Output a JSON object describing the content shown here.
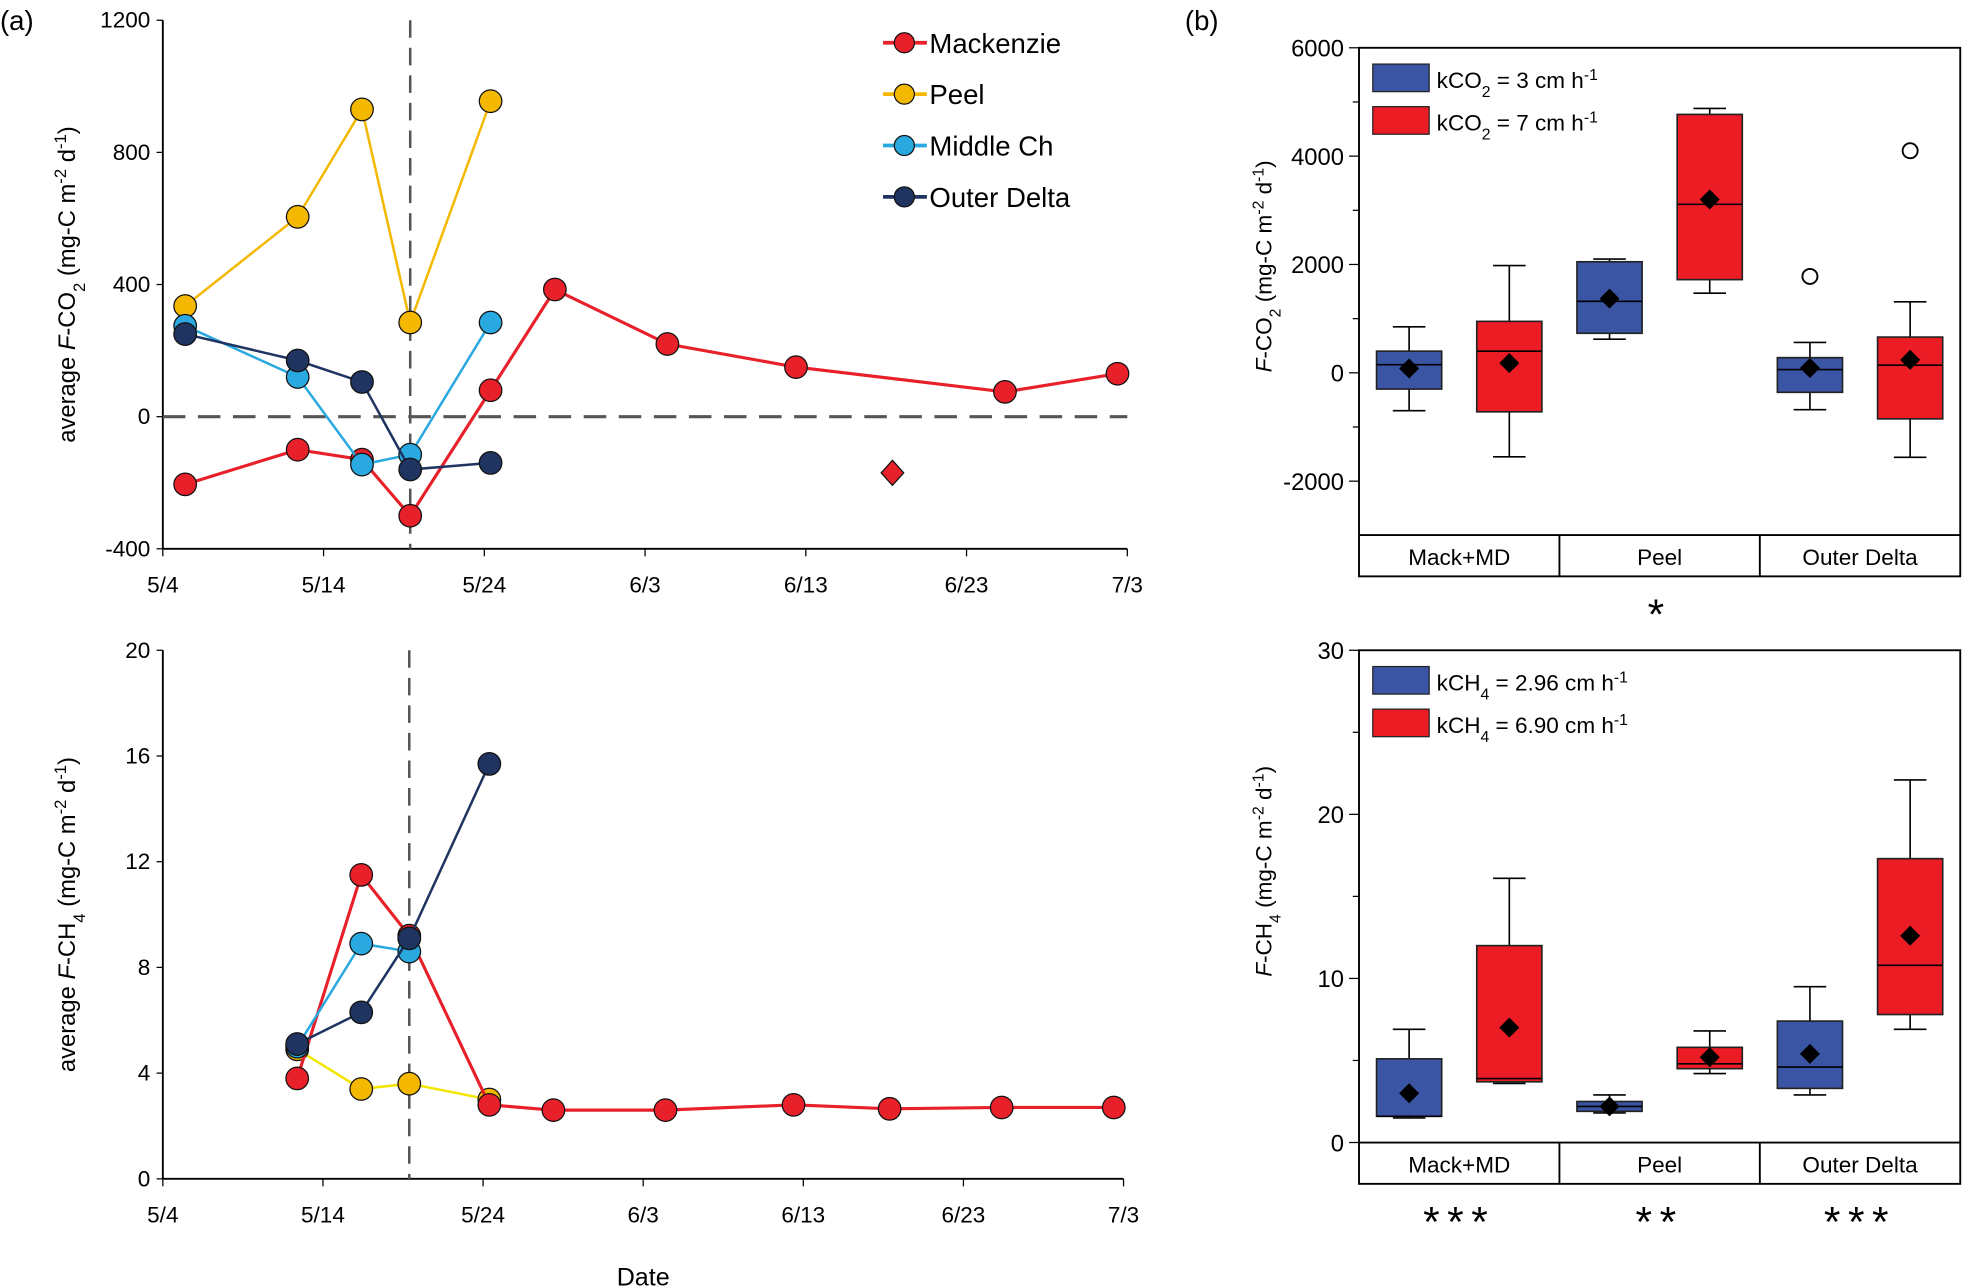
{
  "panel_labels": {
    "a": "(a)",
    "b": "(b)"
  },
  "colors": {
    "Mackenzie": "#e8202a",
    "Peel": "#f5b800",
    "Peel_ch4_line": "#f2e600",
    "Middle Ch": "#2aa9e0",
    "Outer Delta": "#1f3461",
    "box_blue": "#3a55a4",
    "box_red": "#ec1c24",
    "refline": "#555555"
  },
  "chart_data": [
    {
      "type": "line",
      "panel": "a-top",
      "ylabel": [
        {
          "t": "average "
        },
        {
          "t": "F",
          "i": true
        },
        {
          "t": "-CO"
        },
        {
          "t": "2",
          "sub": true
        },
        {
          "t": " (mg-C m"
        },
        {
          "t": "-2",
          "sup": true
        },
        {
          "t": " d"
        },
        {
          "t": "-1",
          "sup": true
        },
        {
          "t": ")"
        }
      ],
      "xlabel": "",
      "x_ticks": [
        "5/4",
        "5/14",
        "5/24",
        "6/3",
        "6/13",
        "6/23",
        "7/3"
      ],
      "ylim": [
        -400,
        1200
      ],
      "y_ticks": [
        1200,
        800,
        400,
        0,
        -400
      ],
      "reference_lines": {
        "horizontal_y": 0,
        "vertical_date": "5/19"
      },
      "legend": {
        "position": "top-right",
        "entries": [
          "Mackenzie",
          "Peel",
          "Middle Ch",
          "Outer Delta"
        ]
      },
      "series": [
        {
          "name": "Mackenzie",
          "x": [
            "5/5",
            "5/12",
            "5/16",
            "5/19",
            "5/24",
            "5/28",
            "6/4",
            "6/12",
            "6/25",
            "7/2"
          ],
          "y": [
            -205,
            -100,
            -130,
            -300,
            80,
            385,
            220,
            150,
            75,
            130
          ]
        },
        {
          "name": "Peel",
          "x": [
            "5/5",
            "5/12",
            "5/16",
            "5/19",
            "5/24"
          ],
          "y": [
            335,
            605,
            930,
            285,
            955
          ]
        },
        {
          "name": "Middle Ch",
          "x": [
            "5/5",
            "5/12",
            "5/16",
            "5/19",
            "5/24"
          ],
          "y": [
            275,
            120,
            -145,
            -115,
            285
          ]
        },
        {
          "name": "Outer Delta",
          "x": [
            "5/5",
            "5/12",
            "5/16",
            "5/19",
            "5/24"
          ],
          "y": [
            250,
            170,
            105,
            -160,
            -140
          ]
        }
      ],
      "extra_points": [
        {
          "marker": "diamond",
          "color": "#e8202a",
          "x": "6/18",
          "y": -170
        }
      ]
    },
    {
      "type": "line",
      "panel": "a-bottom",
      "ylabel": [
        {
          "t": "average "
        },
        {
          "t": "F",
          "i": true
        },
        {
          "t": "-CH"
        },
        {
          "t": "4",
          "sub": true
        },
        {
          "t": " (mg-C m"
        },
        {
          "t": "-2",
          "sup": true
        },
        {
          "t": " d"
        },
        {
          "t": "-1",
          "sup": true
        },
        {
          "t": ")"
        }
      ],
      "xlabel": "Date",
      "x_ticks": [
        "5/4",
        "5/14",
        "5/24",
        "6/3",
        "6/13",
        "6/23",
        "7/3"
      ],
      "ylim": [
        0,
        20
      ],
      "y_ticks": [
        20,
        16,
        12,
        8,
        4,
        0
      ],
      "reference_lines": {
        "vertical_date": "5/19"
      },
      "series": [
        {
          "name": "Peel",
          "x": [
            "5/12",
            "5/16",
            "5/19",
            "5/24"
          ],
          "y": [
            4.9,
            3.4,
            3.6,
            3.0
          ]
        },
        {
          "name": "Mackenzie",
          "x": [
            "5/12",
            "5/16",
            "5/19",
            "5/24",
            "5/28",
            "6/4",
            "6/12",
            "6/18",
            "6/25",
            "7/2"
          ],
          "y": [
            3.8,
            11.5,
            9.2,
            2.8,
            2.6,
            2.6,
            2.8,
            2.65,
            2.7,
            2.7
          ]
        },
        {
          "name": "Middle Ch",
          "x": [
            "5/12",
            "5/16",
            "5/19"
          ],
          "y": [
            5.0,
            8.9,
            8.6
          ]
        },
        {
          "name": "Outer Delta",
          "x": [
            "5/12",
            "5/16",
            "5/19",
            "5/24"
          ],
          "y": [
            5.1,
            6.3,
            9.1,
            15.7
          ]
        }
      ]
    },
    {
      "type": "box",
      "panel": "b-top",
      "ylabel": [
        {
          "t": "F",
          "i": true
        },
        {
          "t": "-CO"
        },
        {
          "t": "2",
          "sub": true
        },
        {
          "t": " (mg-C m"
        },
        {
          "t": "-2",
          "sup": true
        },
        {
          "t": " d"
        },
        {
          "t": "-1",
          "sup": true
        },
        {
          "t": ")"
        }
      ],
      "ylim": [
        -3000,
        6000
      ],
      "y_ticks": [
        6000,
        4000,
        2000,
        0,
        -2000
      ],
      "categories": [
        "Mack+MD",
        "Peel",
        "Outer Delta"
      ],
      "significance": [
        "",
        "*",
        ""
      ],
      "legend": {
        "position": "top-left",
        "entries": [
          {
            "color": "blue",
            "label": [
              {
                "t": "kCO"
              },
              {
                "t": "2",
                "sub": true
              },
              {
                "t": " = 3 cm h"
              },
              {
                "t": "-1",
                "sup": true
              }
            ]
          },
          {
            "color": "red",
            "label": [
              {
                "t": "kCO"
              },
              {
                "t": "2",
                "sub": true
              },
              {
                "t": " = 7 cm h"
              },
              {
                "t": "-1",
                "sup": true
              }
            ]
          }
        ]
      },
      "series": [
        {
          "color": "blue",
          "boxes": [
            {
              "min": -700,
              "q1": -300,
              "median": 150,
              "q3": 400,
              "max": 850,
              "mean": 80,
              "outliers": []
            },
            {
              "min": 620,
              "q1": 730,
              "median": 1320,
              "q3": 2050,
              "max": 2100,
              "mean": 1370,
              "outliers": []
            },
            {
              "min": -680,
              "q1": -360,
              "median": 60,
              "q3": 280,
              "max": 560,
              "mean": 90,
              "outliers": [
                1780
              ]
            }
          ]
        },
        {
          "color": "red",
          "boxes": [
            {
              "min": -1550,
              "q1": -720,
              "median": 400,
              "q3": 950,
              "max": 1980,
              "mean": 180,
              "outliers": []
            },
            {
              "min": 1470,
              "q1": 1720,
              "median": 3110,
              "q3": 4770,
              "max": 4880,
              "mean": 3200,
              "outliers": []
            },
            {
              "min": -1560,
              "q1": -850,
              "median": 140,
              "q3": 660,
              "max": 1310,
              "mean": 240,
              "outliers": [
                4100
              ]
            }
          ]
        }
      ]
    },
    {
      "type": "box",
      "panel": "b-bottom",
      "ylabel": [
        {
          "t": "F",
          "i": true
        },
        {
          "t": "-CH"
        },
        {
          "t": "4",
          "sub": true
        },
        {
          "t": " (mg-C m"
        },
        {
          "t": "-2",
          "sup": true
        },
        {
          "t": " d"
        },
        {
          "t": "-1",
          "sup": true
        },
        {
          "t": ")"
        }
      ],
      "ylim": [
        0,
        30
      ],
      "y_ticks": [
        30,
        20,
        10,
        0
      ],
      "categories": [
        "Mack+MD",
        "Peel",
        "Outer Delta"
      ],
      "significance": [
        "***",
        "**",
        "***"
      ],
      "legend": {
        "position": "top-left",
        "entries": [
          {
            "color": "blue",
            "label": [
              {
                "t": "kCH"
              },
              {
                "t": "4",
                "sub": true
              },
              {
                "t": " = 2.96 cm h"
              },
              {
                "t": "-1",
                "sup": true
              }
            ]
          },
          {
            "color": "red",
            "label": [
              {
                "t": "kCH"
              },
              {
                "t": "4",
                "sub": true
              },
              {
                "t": " = 6.90 cm h"
              },
              {
                "t": "-1",
                "sup": true
              }
            ]
          }
        ]
      },
      "series": [
        {
          "color": "blue",
          "boxes": [
            {
              "min": 1.5,
              "q1": 1.6,
              "median": 1.6,
              "q3": 5.1,
              "max": 6.9,
              "mean": 3.0,
              "outliers": []
            },
            {
              "min": 1.8,
              "q1": 1.9,
              "median": 2.2,
              "q3": 2.5,
              "max": 2.9,
              "mean": 2.2,
              "outliers": []
            },
            {
              "min": 2.9,
              "q1": 3.3,
              "median": 4.6,
              "q3": 7.4,
              "max": 9.5,
              "mean": 5.4,
              "outliers": []
            }
          ]
        },
        {
          "color": "red",
          "boxes": [
            {
              "min": 3.6,
              "q1": 3.7,
              "median": 3.9,
              "q3": 12.0,
              "max": 16.1,
              "mean": 7.0,
              "outliers": []
            },
            {
              "min": 4.2,
              "q1": 4.5,
              "median": 4.8,
              "q3": 5.8,
              "max": 6.8,
              "mean": 5.2,
              "outliers": []
            },
            {
              "min": 6.9,
              "q1": 7.8,
              "median": 10.8,
              "q3": 17.3,
              "max": 22.1,
              "mean": 12.6,
              "outliers": []
            }
          ]
        }
      ]
    }
  ]
}
